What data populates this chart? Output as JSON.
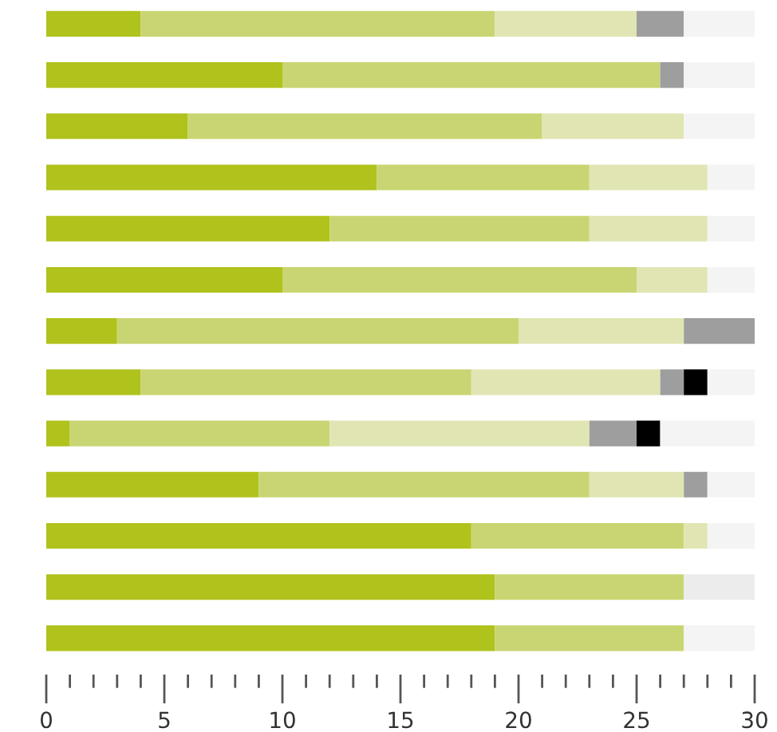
{
  "chart_data": {
    "type": "bar",
    "orientation": "horizontal",
    "stacked": true,
    "categories": [
      null,
      null,
      null,
      null,
      null,
      null,
      null,
      null,
      null,
      null,
      null,
      null,
      null
    ],
    "series": [
      {
        "color": "#b0c21c",
        "values": [
          4,
          10,
          6,
          14,
          12,
          10,
          3,
          4,
          1,
          9,
          18,
          19,
          19
        ]
      },
      {
        "color": "#c9d572",
        "values": [
          15,
          16,
          15,
          9,
          11,
          15,
          17,
          14,
          11,
          14,
          9,
          8,
          8
        ]
      },
      {
        "color": "#e1e5b3",
        "values": [
          6,
          0,
          6,
          5,
          5,
          3,
          7,
          8,
          11,
          4,
          1,
          0,
          0
        ]
      },
      {
        "color": "#9e9e9f",
        "values": [
          2,
          1,
          0,
          0,
          0,
          0,
          3,
          1,
          2,
          1,
          0,
          0,
          0
        ]
      },
      {
        "color": "#000000",
        "values": [
          0,
          0,
          0,
          0,
          0,
          0,
          0,
          1,
          1,
          0,
          0,
          0,
          0
        ]
      },
      {
        "colors": [
          "#f4f4f4",
          "#f4f4f4",
          "#f4f4f4",
          "#f4f4f4",
          "#f4f4f4",
          "#f4f4f4",
          "#f4f4f4",
          "#f4f4f4",
          "#f4f4f4",
          "#f4f4f4",
          "#f4f4f4",
          "#ebeceb",
          "#f4f4f4"
        ],
        "values": [
          3,
          3,
          3,
          2,
          2,
          2,
          0,
          2,
          4,
          2,
          2,
          3,
          3
        ]
      }
    ],
    "xlim": [
      0,
      30
    ],
    "xticks": [
      0,
      {
        "value": 1,
        "label": null
      },
      {
        "value": 2,
        "label": null
      },
      {
        "value": 3,
        "label": null
      },
      {
        "value": 4,
        "label": null
      },
      5,
      {
        "value": 6,
        "label": null
      },
      {
        "value": 7,
        "label": null
      },
      {
        "value": 8,
        "label": null
      },
      {
        "value": 9,
        "label": null
      },
      10,
      {
        "value": 11,
        "label": null
      },
      {
        "value": 12,
        "label": null
      },
      {
        "value": 13,
        "label": null
      },
      {
        "value": 14,
        "label": null
      },
      15,
      {
        "value": 16,
        "label": null
      },
      {
        "value": 17,
        "label": null
      },
      {
        "value": 18,
        "label": null
      },
      {
        "value": 19,
        "label": null
      },
      20,
      {
        "value": 21,
        "label": null
      },
      {
        "value": 22,
        "label": null
      },
      {
        "value": 23,
        "label": null
      },
      {
        "value": 24,
        "label": null
      },
      25,
      {
        "value": 26,
        "label": null
      },
      {
        "value": 27,
        "label": null
      },
      {
        "value": 28,
        "label": null
      },
      {
        "value": 29,
        "label": null
      },
      30
    ],
    "tick_labels": "x",
    "grid": false
  }
}
